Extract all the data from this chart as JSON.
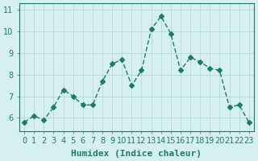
{
  "x": [
    0,
    1,
    2,
    3,
    4,
    5,
    6,
    7,
    8,
    9,
    10,
    11,
    12,
    13,
    14,
    15,
    16,
    17,
    18,
    19,
    20,
    21,
    22,
    23
  ],
  "y": [
    5.8,
    6.1,
    5.9,
    6.5,
    7.3,
    7.0,
    6.6,
    6.6,
    7.7,
    8.5,
    8.7,
    7.5,
    8.2,
    10.1,
    10.7,
    9.9,
    8.2,
    8.8,
    8.6,
    8.3,
    8.2,
    6.5,
    6.6,
    5.8
  ],
  "line_color": "#1a7a6e",
  "marker": "D",
  "marker_size": 3,
  "bg_color": "#d6f0ef",
  "grid_color": "#aad4d0",
  "xlabel": "Humidex (Indice chaleur)",
  "ylabel_ticks": [
    6,
    7,
    8,
    9,
    10,
    11
  ],
  "ylim": [
    5.4,
    11.3
  ],
  "xlim": [
    -0.5,
    23.5
  ],
  "title_color": "#1a7a6e",
  "tick_color": "#1a7a6e",
  "xlabel_color": "#1a7a6e",
  "label_fontsize": 8,
  "tick_fontsize": 7
}
